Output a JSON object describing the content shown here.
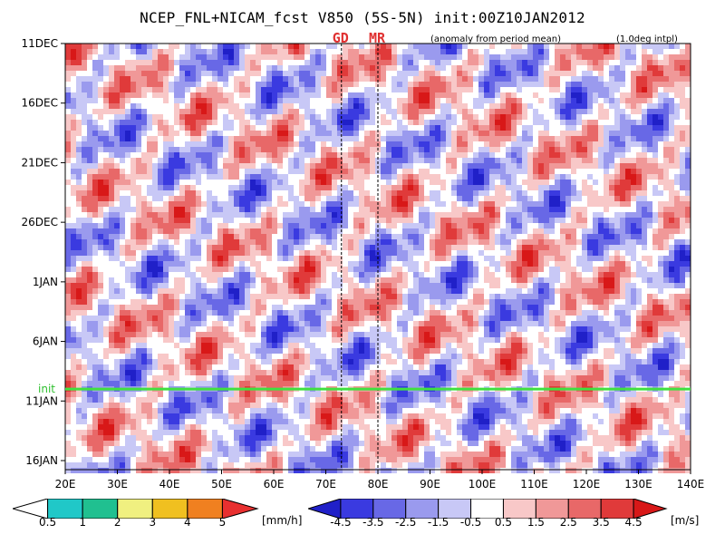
{
  "chart_data": {
    "type": "heatmap",
    "title": "NCEP_FNL+NICAM_fcst V850 (5S-5N) init:00Z10JAN2012",
    "subtitle": "(anomaly from period mean)",
    "note": "(1.0deg intpl)",
    "markers": [
      {
        "label": "GD",
        "lon": 73
      },
      {
        "label": "MR",
        "lon": 80
      }
    ],
    "init_label": "init",
    "x_ticks": [
      "20E",
      "30E",
      "40E",
      "50E",
      "60E",
      "70E",
      "80E",
      "90E",
      "100E",
      "110E",
      "120E",
      "130E",
      "140E"
    ],
    "y_ticks": [
      "11DEC",
      "16DEC",
      "21DEC",
      "26DEC",
      "1JAN",
      "6JAN",
      "11JAN",
      "16JAN"
    ],
    "xlim": [
      20,
      140
    ],
    "ylim": [
      "11DEC",
      "17JAN"
    ],
    "precip_colorbar": {
      "labels": [
        "0.5",
        "1",
        "2",
        "3",
        "4",
        "5"
      ],
      "unit": "[mm/h]",
      "colors": [
        "#ffffff",
        "#20c8c8",
        "#20c090",
        "#f0f080",
        "#f0c020",
        "#f08020",
        "#e83030"
      ]
    },
    "wind_colorbar": {
      "labels": [
        "-4.5",
        "-3.5",
        "-2.5",
        "-1.5",
        "-0.5",
        "0.5",
        "1.5",
        "2.5",
        "3.5",
        "4.5"
      ],
      "unit": "[m/s]",
      "colors": [
        "#2020c8",
        "#3a3ae0",
        "#6868e6",
        "#9a9aee",
        "#c8c8f6",
        "#ffffff",
        "#f8c8c8",
        "#f09898",
        "#e86868",
        "#e03a3a",
        "#d81818"
      ]
    }
  }
}
